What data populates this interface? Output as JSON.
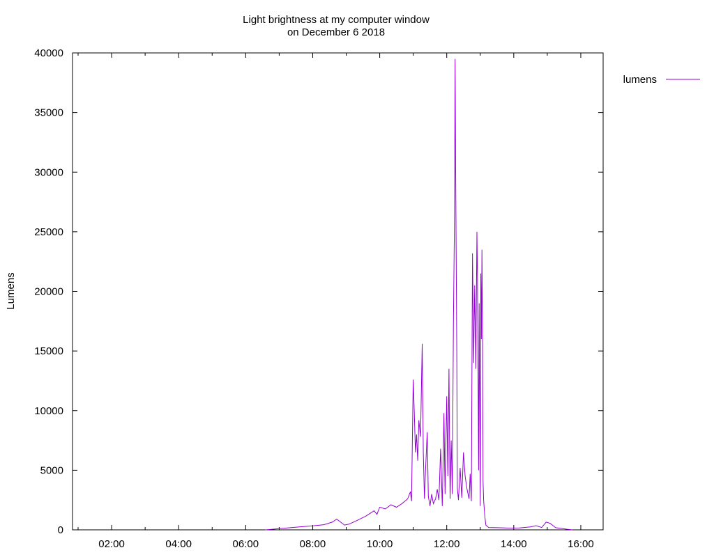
{
  "chart_data": {
    "type": "line",
    "title_line1": "Light brightness at my computer window",
    "title_line2": "on December 6 2018",
    "xlabel": "",
    "ylabel": "Lumens",
    "xlim": [
      "00:50",
      "16:40"
    ],
    "ylim": [
      0,
      40000
    ],
    "grid": false,
    "legend_position": "top-right outside plot",
    "y_ticks": [
      0,
      5000,
      10000,
      15000,
      20000,
      25000,
      30000,
      35000,
      40000
    ],
    "x_ticks": [
      "02:00",
      "04:00",
      "06:00",
      "08:00",
      "10:00",
      "12:00",
      "14:00",
      "16:00"
    ],
    "series": [
      {
        "name": "lumens",
        "color": "#9400d3",
        "points": [
          [
            "06:35",
            0
          ],
          [
            "06:55",
            80
          ],
          [
            "07:20",
            180
          ],
          [
            "07:40",
            260
          ],
          [
            "08:00",
            330
          ],
          [
            "08:20",
            430
          ],
          [
            "08:35",
            650
          ],
          [
            "08:43",
            900
          ],
          [
            "08:50",
            650
          ],
          [
            "08:57",
            400
          ],
          [
            "09:05",
            480
          ],
          [
            "09:20",
            800
          ],
          [
            "09:35",
            1150
          ],
          [
            "09:50",
            1600
          ],
          [
            "09:55",
            1300
          ],
          [
            "10:00",
            1900
          ],
          [
            "10:10",
            1750
          ],
          [
            "10:20",
            2100
          ],
          [
            "10:30",
            1900
          ],
          [
            "10:40",
            2200
          ],
          [
            "10:50",
            2600
          ],
          [
            "10:55",
            3200
          ],
          [
            "10:57",
            2400
          ],
          [
            "11:00",
            12600
          ],
          [
            "11:02",
            9800
          ],
          [
            "11:04",
            6500
          ],
          [
            "11:06",
            8000
          ],
          [
            "11:08",
            5800
          ],
          [
            "11:10",
            9200
          ],
          [
            "11:13",
            7800
          ],
          [
            "11:16",
            15600
          ],
          [
            "11:18",
            6500
          ],
          [
            "11:20",
            2600
          ],
          [
            "11:22",
            5000
          ],
          [
            "11:25",
            8200
          ],
          [
            "11:27",
            2800
          ],
          [
            "11:30",
            2000
          ],
          [
            "11:33",
            3000
          ],
          [
            "11:36",
            2200
          ],
          [
            "11:40",
            2600
          ],
          [
            "11:43",
            3400
          ],
          [
            "11:46",
            2500
          ],
          [
            "11:49",
            6800
          ],
          [
            "11:52",
            2000
          ],
          [
            "11:55",
            9800
          ],
          [
            "11:57",
            3000
          ],
          [
            "12:00",
            11200
          ],
          [
            "12:02",
            4500
          ],
          [
            "12:04",
            13500
          ],
          [
            "12:06",
            2600
          ],
          [
            "12:08",
            7500
          ],
          [
            "12:10",
            3000
          ],
          [
            "12:12",
            17500
          ],
          [
            "12:14",
            26500
          ],
          [
            "12:15",
            39500
          ],
          [
            "12:16",
            30000
          ],
          [
            "12:18",
            15000
          ],
          [
            "12:19",
            3500
          ],
          [
            "12:21",
            2500
          ],
          [
            "12:24",
            5200
          ],
          [
            "12:27",
            2700
          ],
          [
            "12:30",
            6500
          ],
          [
            "12:33",
            4500
          ],
          [
            "12:36",
            3500
          ],
          [
            "12:40",
            2600
          ],
          [
            "12:42",
            4700
          ],
          [
            "12:44",
            2400
          ],
          [
            "12:46",
            23200
          ],
          [
            "12:48",
            14000
          ],
          [
            "12:50",
            20500
          ],
          [
            "12:52",
            13500
          ],
          [
            "12:54",
            25000
          ],
          [
            "12:55",
            21000
          ],
          [
            "12:57",
            5000
          ],
          [
            "12:58",
            19000
          ],
          [
            "13:00",
            2000
          ],
          [
            "13:01",
            21500
          ],
          [
            "13:02",
            16000
          ],
          [
            "13:03",
            23500
          ],
          [
            "13:04",
            17000
          ],
          [
            "13:05",
            4000
          ],
          [
            "13:06",
            2500
          ],
          [
            "13:08",
            1200
          ],
          [
            "13:10",
            400
          ],
          [
            "13:15",
            200
          ],
          [
            "13:30",
            180
          ],
          [
            "13:50",
            150
          ],
          [
            "14:10",
            160
          ],
          [
            "14:30",
            250
          ],
          [
            "14:40",
            350
          ],
          [
            "14:50",
            200
          ],
          [
            "14:58",
            650
          ],
          [
            "15:05",
            550
          ],
          [
            "15:15",
            180
          ],
          [
            "15:25",
            120
          ],
          [
            "15:35",
            50
          ],
          [
            "15:45",
            0
          ]
        ]
      }
    ]
  }
}
